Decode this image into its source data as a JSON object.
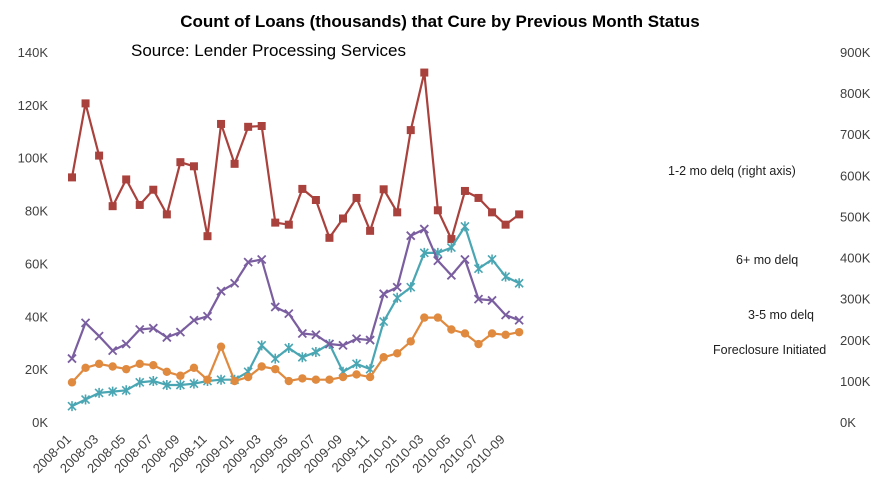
{
  "chart_data": {
    "type": "line",
    "title": "Count of Loans (thousands) that Cure by Previous Month Status",
    "subtitle": "Source: Lender Processing Services",
    "x": [
      "2008-01",
      "2008-02",
      "2008-03",
      "2008-04",
      "2008-05",
      "2008-06",
      "2008-07",
      "2008-08",
      "2008-09",
      "2008-10",
      "2008-11",
      "2008-12",
      "2009-01",
      "2009-02",
      "2009-03",
      "2009-04",
      "2009-05",
      "2009-06",
      "2009-07",
      "2009-08",
      "2009-09",
      "2009-10",
      "2009-11",
      "2009-12",
      "2010-01",
      "2010-02",
      "2010-03",
      "2010-04",
      "2010-05",
      "2010-06",
      "2010-07",
      "2010-08",
      "2010-09",
      "2010-10"
    ],
    "x_tick_labels": [
      "2008-01",
      "2008-03",
      "2008-05",
      "2008-07",
      "2008-09",
      "2008-11",
      "2009-01",
      "2009-03",
      "2009-05",
      "2009-07",
      "2009-09",
      "2009-11",
      "2010-01",
      "2010-03",
      "2010-05",
      "2010-07",
      "2010-09"
    ],
    "left_axis": {
      "ylim": [
        0,
        140000
      ],
      "ticks": [
        "0K",
        "20K",
        "40K",
        "60K",
        "80K",
        "100K",
        "120K",
        "140K"
      ]
    },
    "right_axis": {
      "ylim": [
        0,
        900000
      ],
      "ticks": [
        "0K",
        "100K",
        "200K",
        "300K",
        "400K",
        "500K",
        "600K",
        "700K",
        "800K",
        "900K"
      ]
    },
    "grid": false,
    "series": [
      {
        "name": "1-2 mo delq (right axis)",
        "axis": "right",
        "color": "#a9413d",
        "marker": "square",
        "values": [
          595000,
          775000,
          648000,
          525000,
          590000,
          528000,
          565000,
          505000,
          632000,
          622000,
          452000,
          725000,
          628000,
          718000,
          720000,
          485000,
          480000,
          567000,
          540000,
          448000,
          495000,
          545000,
          465000,
          566000,
          510000,
          710000,
          850000,
          515000,
          445000,
          562000,
          545000,
          510000,
          480000,
          505000
        ]
      },
      {
        "name": "6+ mo delq",
        "axis": "left",
        "color": "#4aa6b3",
        "marker": "star",
        "values": [
          6000,
          8500,
          11000,
          11500,
          12000,
          15000,
          15500,
          14000,
          14000,
          14500,
          15500,
          16000,
          16000,
          19000,
          29000,
          24000,
          28000,
          24500,
          26500,
          29500,
          19000,
          22000,
          20000,
          38000,
          47000,
          51000,
          64000,
          64000,
          66000,
          74000,
          58000,
          61500,
          55000,
          52500
        ]
      },
      {
        "name": "3-5 mo delq",
        "axis": "left",
        "color": "#7a5ea0",
        "marker": "cross",
        "values": [
          24000,
          37500,
          32500,
          27000,
          29500,
          35000,
          35500,
          32000,
          34000,
          38500,
          40000,
          49500,
          52500,
          60500,
          61500,
          43500,
          41000,
          33500,
          33000,
          29500,
          29000,
          31500,
          31000,
          48500,
          51000,
          70500,
          73000,
          61000,
          55500,
          61500,
          46500,
          46000,
          40500,
          38500
        ]
      },
      {
        "name": "Foreclosure Initiated",
        "axis": "left",
        "color": "#e08a3f",
        "marker": "circle",
        "values": [
          15000,
          20500,
          22000,
          21000,
          20000,
          22000,
          21500,
          19000,
          17500,
          20500,
          16000,
          28500,
          15500,
          17000,
          21000,
          20000,
          15500,
          16500,
          16000,
          16000,
          17000,
          18000,
          17000,
          24500,
          26000,
          30500,
          39500,
          39500,
          35000,
          33500,
          29500,
          33500,
          33000,
          34000
        ]
      }
    ]
  }
}
